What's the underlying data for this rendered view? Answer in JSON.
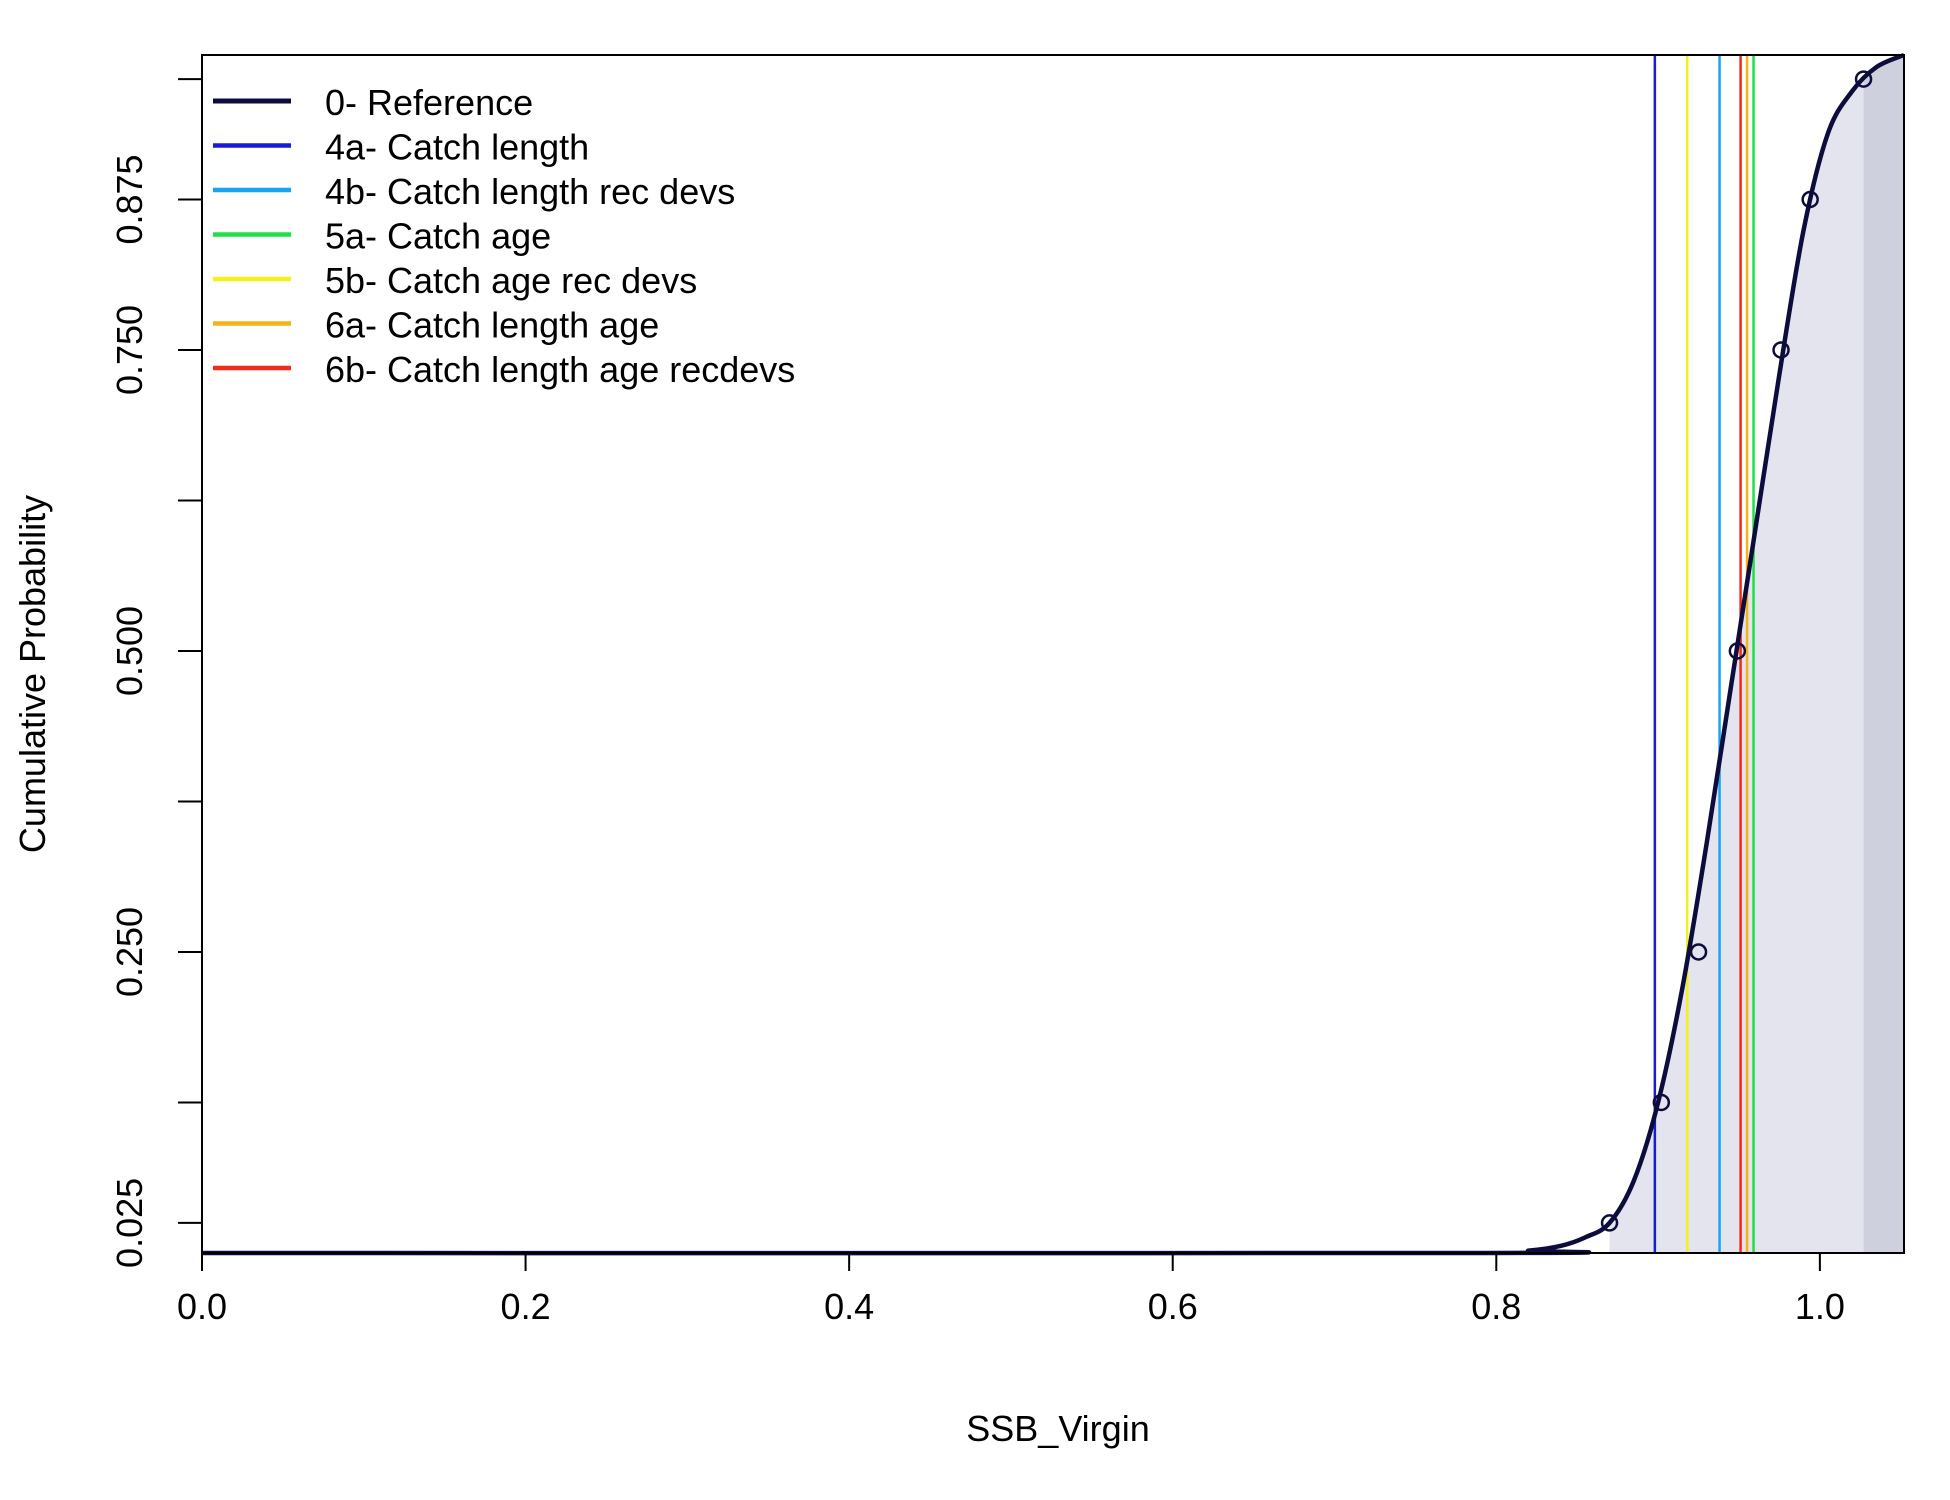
{
  "chart_data": {
    "type": "line",
    "xlabel": "SSB_Virgin",
    "ylabel": "Cumulative Probability",
    "xlim": [
      0.0,
      1.052
    ],
    "ylim": [
      0.0,
      0.995
    ],
    "x_ticks": [
      0.0,
      0.2,
      0.4,
      0.6,
      0.8,
      1.0
    ],
    "x_tick_labels": [
      "0.0",
      "0.2",
      "0.4",
      "0.6",
      "0.8",
      "1.0"
    ],
    "y_ticks": [
      0.025,
      0.125,
      0.25,
      0.375,
      0.5,
      0.625,
      0.75,
      0.875,
      0.975
    ],
    "y_tick_labels": [
      "0.025",
      "",
      "0.250",
      "",
      "0.500",
      "",
      "0.750",
      "0.875",
      ""
    ],
    "grid": false,
    "legend_position": "top-left",
    "reference_curve": {
      "name": "0- Reference",
      "color": "#0d0d3d",
      "x": [
        0.0,
        0.79,
        0.82,
        0.84,
        0.855,
        0.87,
        0.885,
        0.9,
        0.915,
        0.93,
        0.945,
        0.96,
        0.975,
        0.99,
        1.005,
        1.02,
        1.035,
        1.052
      ],
      "y": [
        0.0,
        0.0,
        0.002,
        0.006,
        0.013,
        0.025,
        0.06,
        0.125,
        0.22,
        0.34,
        0.47,
        0.6,
        0.73,
        0.85,
        0.93,
        0.965,
        0.985,
        0.995
      ]
    },
    "quantile_points": {
      "x": [
        0.87,
        0.902,
        0.925,
        0.949,
        0.976,
        0.994,
        1.027
      ],
      "y": [
        0.025,
        0.125,
        0.25,
        0.5,
        0.75,
        0.875,
        0.975
      ]
    },
    "shaded_regions": [
      {
        "x_from": 0.87,
        "x_to": 1.027,
        "color": "#e3e4ed"
      },
      {
        "x_from": 1.027,
        "x_to": 1.052,
        "color": "#cfd0de"
      }
    ],
    "series": [
      {
        "name": "4a- Catch length",
        "color": "#1a1adb",
        "value": 0.898
      },
      {
        "name": "4b- Catch length rec devs",
        "color": "#1aa3f0",
        "value": 0.938
      },
      {
        "name": "5a- Catch age",
        "color": "#1fe048",
        "value": 0.959
      },
      {
        "name": "5b- Catch age rec devs",
        "color": "#f2f21a",
        "value": 0.918
      },
      {
        "name": "6a- Catch length age",
        "color": "#f7b21a",
        "value": 0.955
      },
      {
        "name": "6b- Catch length age recdevs",
        "color": "#f22a1a",
        "value": 0.951
      }
    ]
  }
}
